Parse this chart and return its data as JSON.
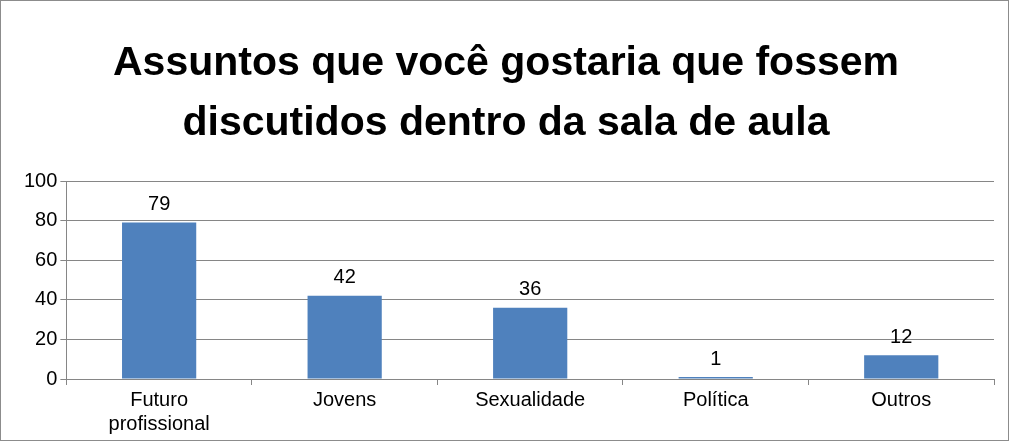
{
  "chart_data": {
    "type": "bar",
    "title": "Assuntos que você gostaria que fossem discutidos dentro da sala de aula",
    "categories": [
      "Futuro profissional",
      "Jovens",
      "Sexualidade",
      "Política",
      "Outros"
    ],
    "values": [
      79,
      42,
      36,
      1,
      12
    ],
    "color": "#4f81bd",
    "ylim": [
      0,
      100
    ],
    "yticks": [
      0,
      20,
      40,
      60,
      80,
      100
    ],
    "grid": "y",
    "legend": false,
    "data_labels": true
  }
}
